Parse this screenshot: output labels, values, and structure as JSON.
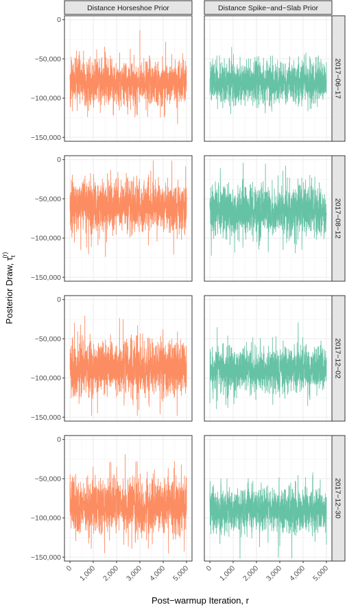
{
  "chart_data": {
    "type": "line",
    "xlabel": "Post−warmup Iteration, r",
    "ylabel": "Posterior Draw, τ",
    "ylabel_superscript": "(r)",
    "ylabel_subscript": "t",
    "xlim": [
      0,
      5000
    ],
    "ylim": [
      -155000,
      5000
    ],
    "x_ticks": [
      0,
      1000,
      2000,
      3000,
      4000,
      5000
    ],
    "x_tick_labels": [
      "0",
      "1,000",
      "2,000",
      "3,000",
      "4,000",
      "5,000"
    ],
    "y_ticks": [
      0,
      -50000,
      -100000,
      -150000
    ],
    "y_tick_labels": [
      "0",
      "−50,000",
      "−100,000",
      "−150,000"
    ],
    "grid": true,
    "facet_columns": [
      "Distance Horseshoe Prior",
      "Distance Spike−and−Slab Prior"
    ],
    "facet_rows": [
      "2017−06−17",
      "2017−08−12",
      "2017−12−02",
      "2017−12−30"
    ],
    "series_colors": [
      "#fc8d62",
      "#66c2a5"
    ],
    "panels": [
      {
        "row": 0,
        "col": 0,
        "center": -80000,
        "spread": 14000,
        "min": -135000,
        "max": 2000
      },
      {
        "row": 0,
        "col": 1,
        "center": -80000,
        "spread": 13000,
        "min": -150000,
        "max": -35000
      },
      {
        "row": 1,
        "col": 0,
        "center": -60000,
        "spread": 16000,
        "min": -140000,
        "max": 13000
      },
      {
        "row": 1,
        "col": 1,
        "center": -65000,
        "spread": 16000,
        "min": -155000,
        "max": 18000
      },
      {
        "row": 2,
        "col": 0,
        "center": -88000,
        "spread": 17000,
        "min": -148000,
        "max": 2000
      },
      {
        "row": 2,
        "col": 1,
        "center": -90000,
        "spread": 14000,
        "min": -145000,
        "max": 2000
      },
      {
        "row": 3,
        "col": 0,
        "center": -85000,
        "spread": 18000,
        "min": -152000,
        "max": 8000
      },
      {
        "row": 3,
        "col": 1,
        "center": -90000,
        "spread": 14000,
        "min": -152000,
        "max": 8000
      }
    ]
  }
}
